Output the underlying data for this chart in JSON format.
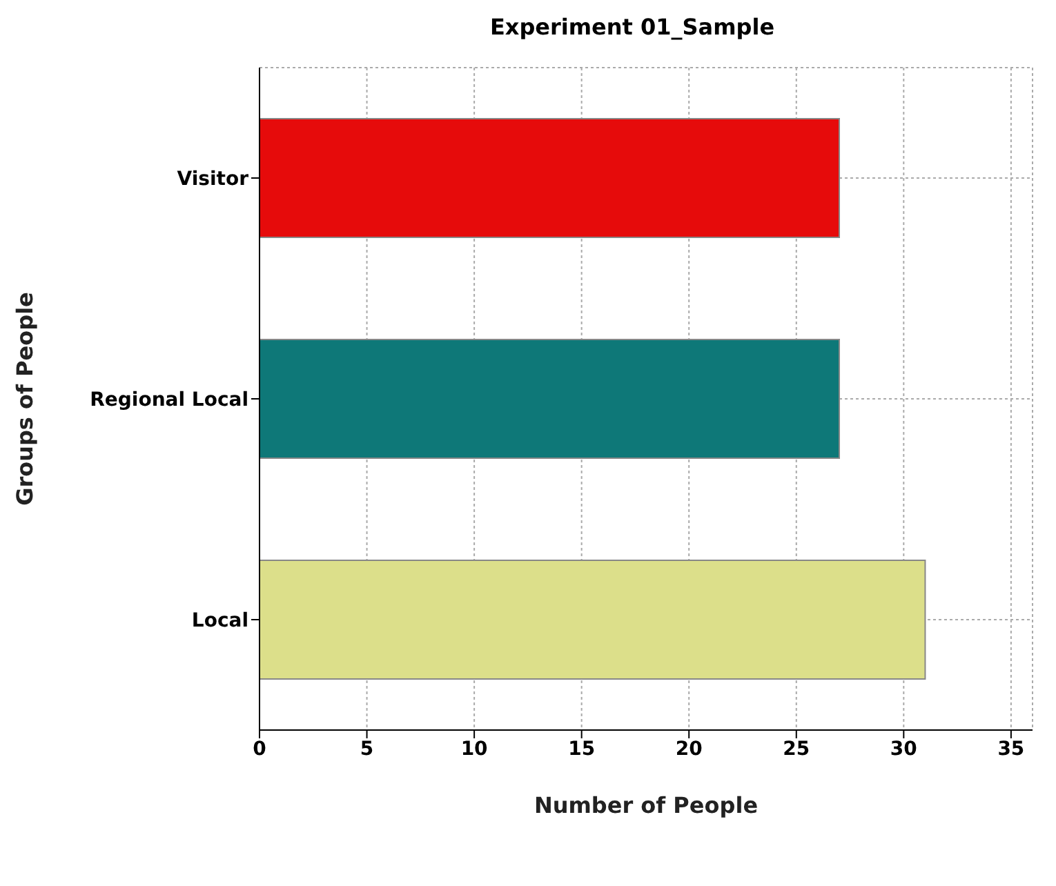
{
  "chart_data": {
    "type": "bar",
    "orientation": "horizontal",
    "title": "Experiment 01_Sample",
    "xlabel": "Number of People",
    "ylabel": "Groups of People",
    "categories": [
      "Visitor",
      "Regional Local",
      "Local"
    ],
    "values": [
      27,
      27,
      31
    ],
    "colors": [
      "#e60b0b",
      "#0e7878",
      "#dcdf8a"
    ],
    "xlim": [
      0,
      36
    ],
    "xticks": [
      0,
      5,
      10,
      15,
      20,
      25,
      30,
      35
    ],
    "grid": true
  }
}
